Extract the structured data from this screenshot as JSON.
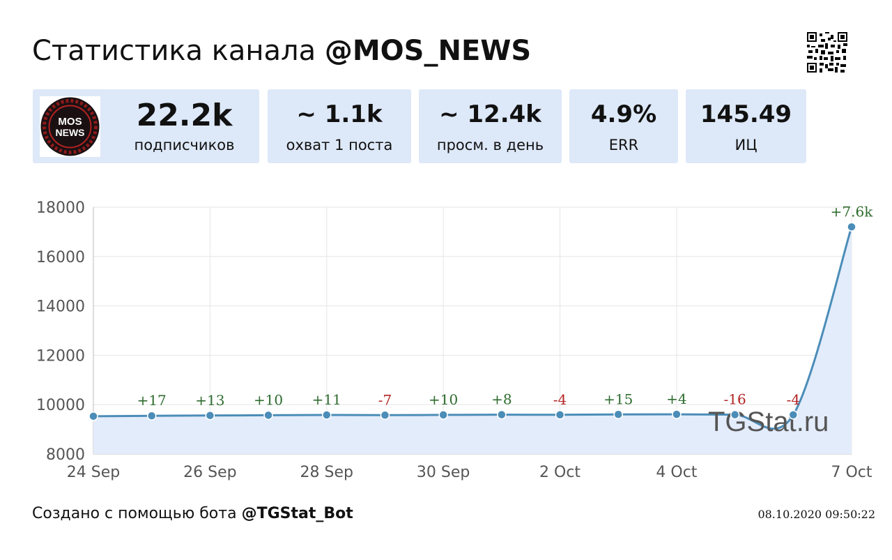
{
  "header": {
    "title_prefix": "Статистика канала",
    "channel": "@MOS_NEWS"
  },
  "avatar": {
    "text_line1": "MOS",
    "text_line2": "NEWS"
  },
  "stats": [
    {
      "value": "22.2k",
      "label": "подписчиков"
    },
    {
      "value": "~ 1.1k",
      "label": "охват 1 поста"
    },
    {
      "value": "~ 12.4k",
      "label": "просм. в день"
    },
    {
      "value": "4.9%",
      "label": "ERR"
    },
    {
      "value": "145.49",
      "label": "ИЦ"
    }
  ],
  "chart_data": {
    "type": "area",
    "x": [
      "24 Sep",
      "25 Sep",
      "26 Sep",
      "27 Sep",
      "28 Sep",
      "29 Sep",
      "30 Sep",
      "1 Oct",
      "2 Oct",
      "3 Oct",
      "4 Oct",
      "5 Oct",
      "6 Oct",
      "7 Oct"
    ],
    "values": [
      9530,
      9547,
      9560,
      9570,
      9581,
      9574,
      9584,
      9592,
      9588,
      9603,
      9607,
      9591,
      9587,
      17200
    ],
    "deltas": [
      "",
      "+17",
      "+13",
      "+10",
      "+11",
      "-7",
      "+10",
      "+8",
      "-4",
      "+15",
      "+4",
      "-16",
      "-4",
      "+7.6k"
    ],
    "xticks": [
      "24 Sep",
      "26 Sep",
      "28 Sep",
      "30 Sep",
      "2 Oct",
      "4 Oct",
      "7 Oct"
    ],
    "ylim": [
      8000,
      18000
    ],
    "yticks": [
      "8000",
      "10000",
      "12000",
      "14000",
      "16000",
      "18000"
    ],
    "grid": true,
    "watermark": "TGStat.ru",
    "colors": {
      "line": "#4b8db8",
      "fill": "#e3ecfb",
      "positive": "#2e6b2e",
      "negative": "#b22222"
    }
  },
  "footer": {
    "prefix": "Создано с помощью бота",
    "bot": "@TGStat_Bot",
    "timestamp": "08.10.2020 09:50:22"
  }
}
